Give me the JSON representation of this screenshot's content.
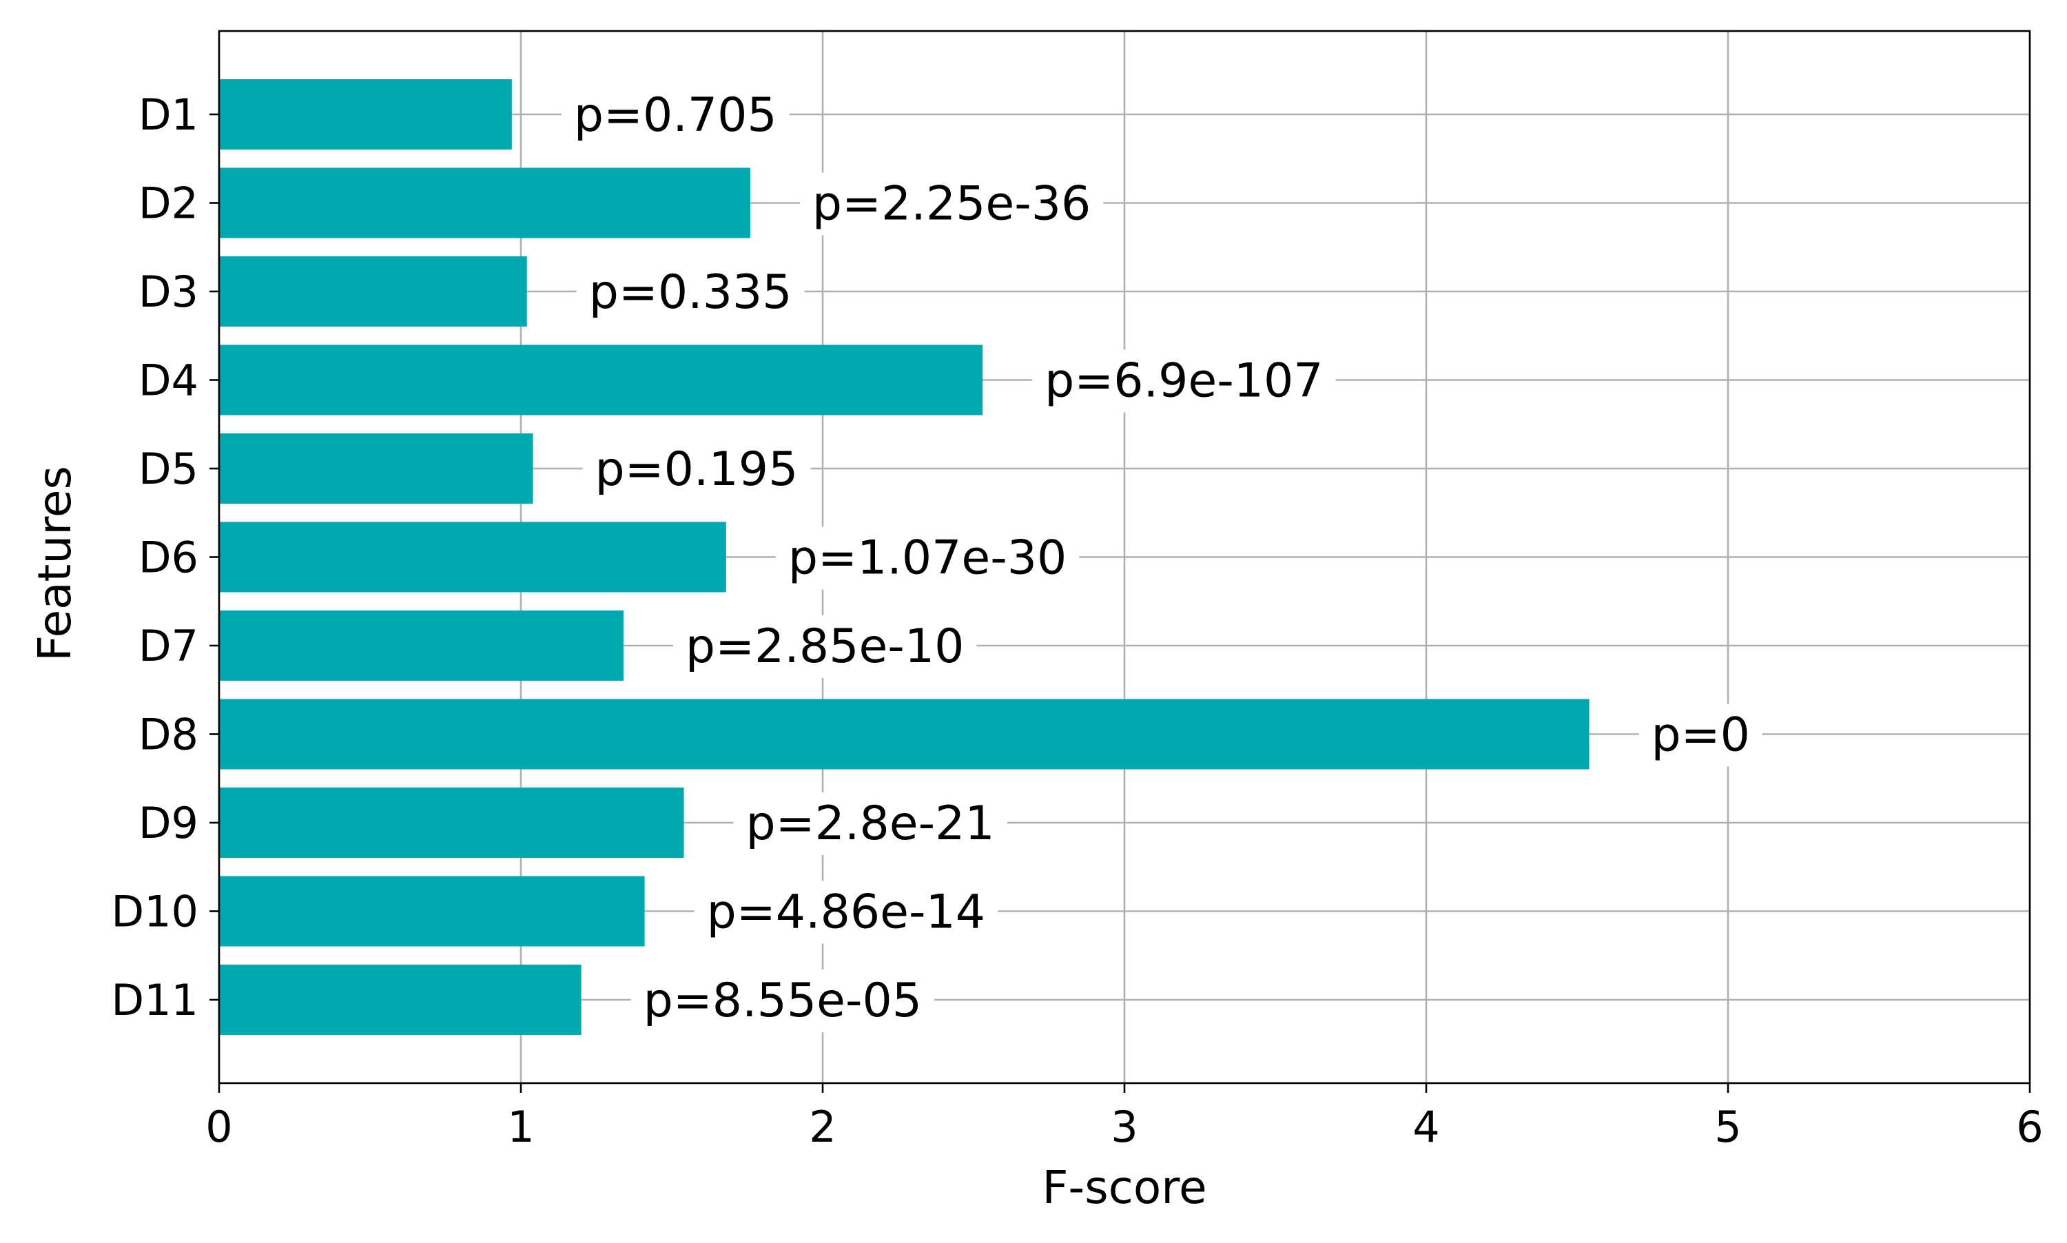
{
  "chart_data": {
    "type": "bar",
    "orientation": "horizontal",
    "xlabel": "F-score",
    "ylabel": "Features",
    "xlim": [
      0,
      6
    ],
    "x_ticks": [
      "0",
      "1",
      "2",
      "3",
      "4",
      "5",
      "6"
    ],
    "categories": [
      "D1",
      "D2",
      "D3",
      "D4",
      "D5",
      "D6",
      "D7",
      "D8",
      "D9",
      "D10",
      "D11"
    ],
    "values": [
      0.97,
      1.76,
      1.02,
      2.53,
      1.04,
      1.68,
      1.34,
      4.54,
      1.54,
      1.41,
      1.2
    ],
    "annotations": [
      "p=0.705",
      "p=2.25e-36",
      "p=0.335",
      "p=6.9e-107",
      "p=0.195",
      "p=1.07e-30",
      "p=2.85e-10",
      "p=0",
      "p=2.8e-21",
      "p=4.86e-14",
      "p=8.55e-05"
    ],
    "bar_color": "#00a9b0",
    "grid": true
  }
}
